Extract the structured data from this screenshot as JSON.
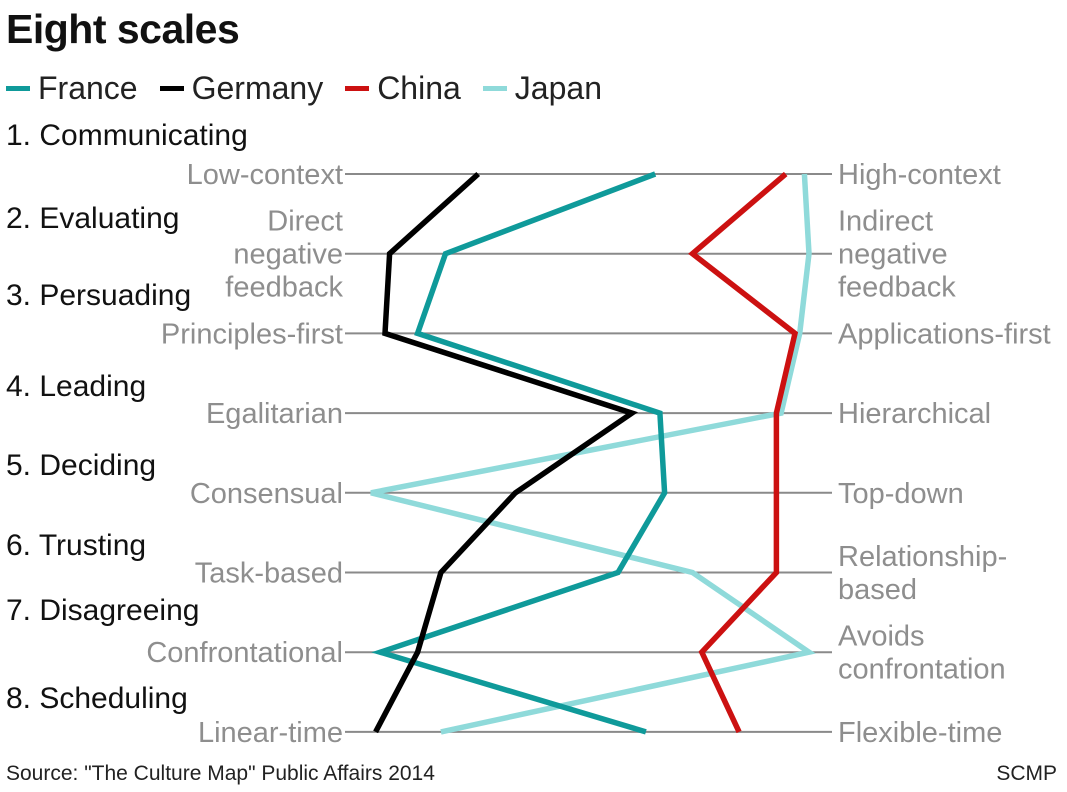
{
  "title": "Eight scales",
  "legend": [
    {
      "name": "France",
      "color": "#0f9a9a"
    },
    {
      "name": "Germany",
      "color": "#000000"
    },
    {
      "name": "China",
      "color": "#cc1111"
    },
    {
      "name": "Japan",
      "color": "#8fdada"
    }
  ],
  "footer": {
    "source": "Source: \"The Culture Map\" Public Affairs 2014",
    "credit": "SCMP"
  },
  "chart_data": {
    "type": "line",
    "orientation": "horizontal-scales",
    "title": "Eight scales",
    "x_range": [
      0,
      100
    ],
    "x_meaning": "0 = left-end label, 100 = right-end label",
    "scales": [
      {
        "dimension": "1. Communicating",
        "left": [
          "Low-context"
        ],
        "right": [
          "High-context"
        ]
      },
      {
        "dimension": "2. Evaluating",
        "left": [
          "Direct",
          "negative",
          "feedback"
        ],
        "right": [
          "Indirect",
          "negative",
          "feedback"
        ]
      },
      {
        "dimension": "3. Persuading",
        "left": [
          "Principles-first"
        ],
        "right": [
          "Applications-first"
        ]
      },
      {
        "dimension": "4. Leading",
        "left": [
          "Egalitarian"
        ],
        "right": [
          "Hierarchical"
        ]
      },
      {
        "dimension": "5. Deciding",
        "left": [
          "Consensual"
        ],
        "right": [
          "Top-down"
        ]
      },
      {
        "dimension": "6. Trusting",
        "left": [
          "Task-based"
        ],
        "right": [
          "Relationship-",
          "based"
        ]
      },
      {
        "dimension": "7. Disagreeing",
        "left": [
          "Confrontational"
        ],
        "right": [
          "Avoids",
          "confrontation"
        ]
      },
      {
        "dimension": "8. Scheduling",
        "left": [
          "Linear-time"
        ],
        "right": [
          "Flexible-time"
        ]
      }
    ],
    "series": [
      {
        "name": "France",
        "color": "#0f9a9a",
        "values": [
          64,
          19,
          13,
          65,
          66,
          56,
          5,
          62
        ]
      },
      {
        "name": "Germany",
        "color": "#000000",
        "values": [
          26,
          7,
          6,
          59,
          34,
          18,
          13,
          4
        ]
      },
      {
        "name": "China",
        "color": "#cc1111",
        "values": [
          92,
          72,
          94,
          90,
          90,
          90,
          74,
          82
        ]
      },
      {
        "name": "Japan",
        "color": "#8fdada",
        "values": [
          96,
          97,
          95,
          91,
          3,
          72,
          97,
          18
        ]
      }
    ]
  }
}
